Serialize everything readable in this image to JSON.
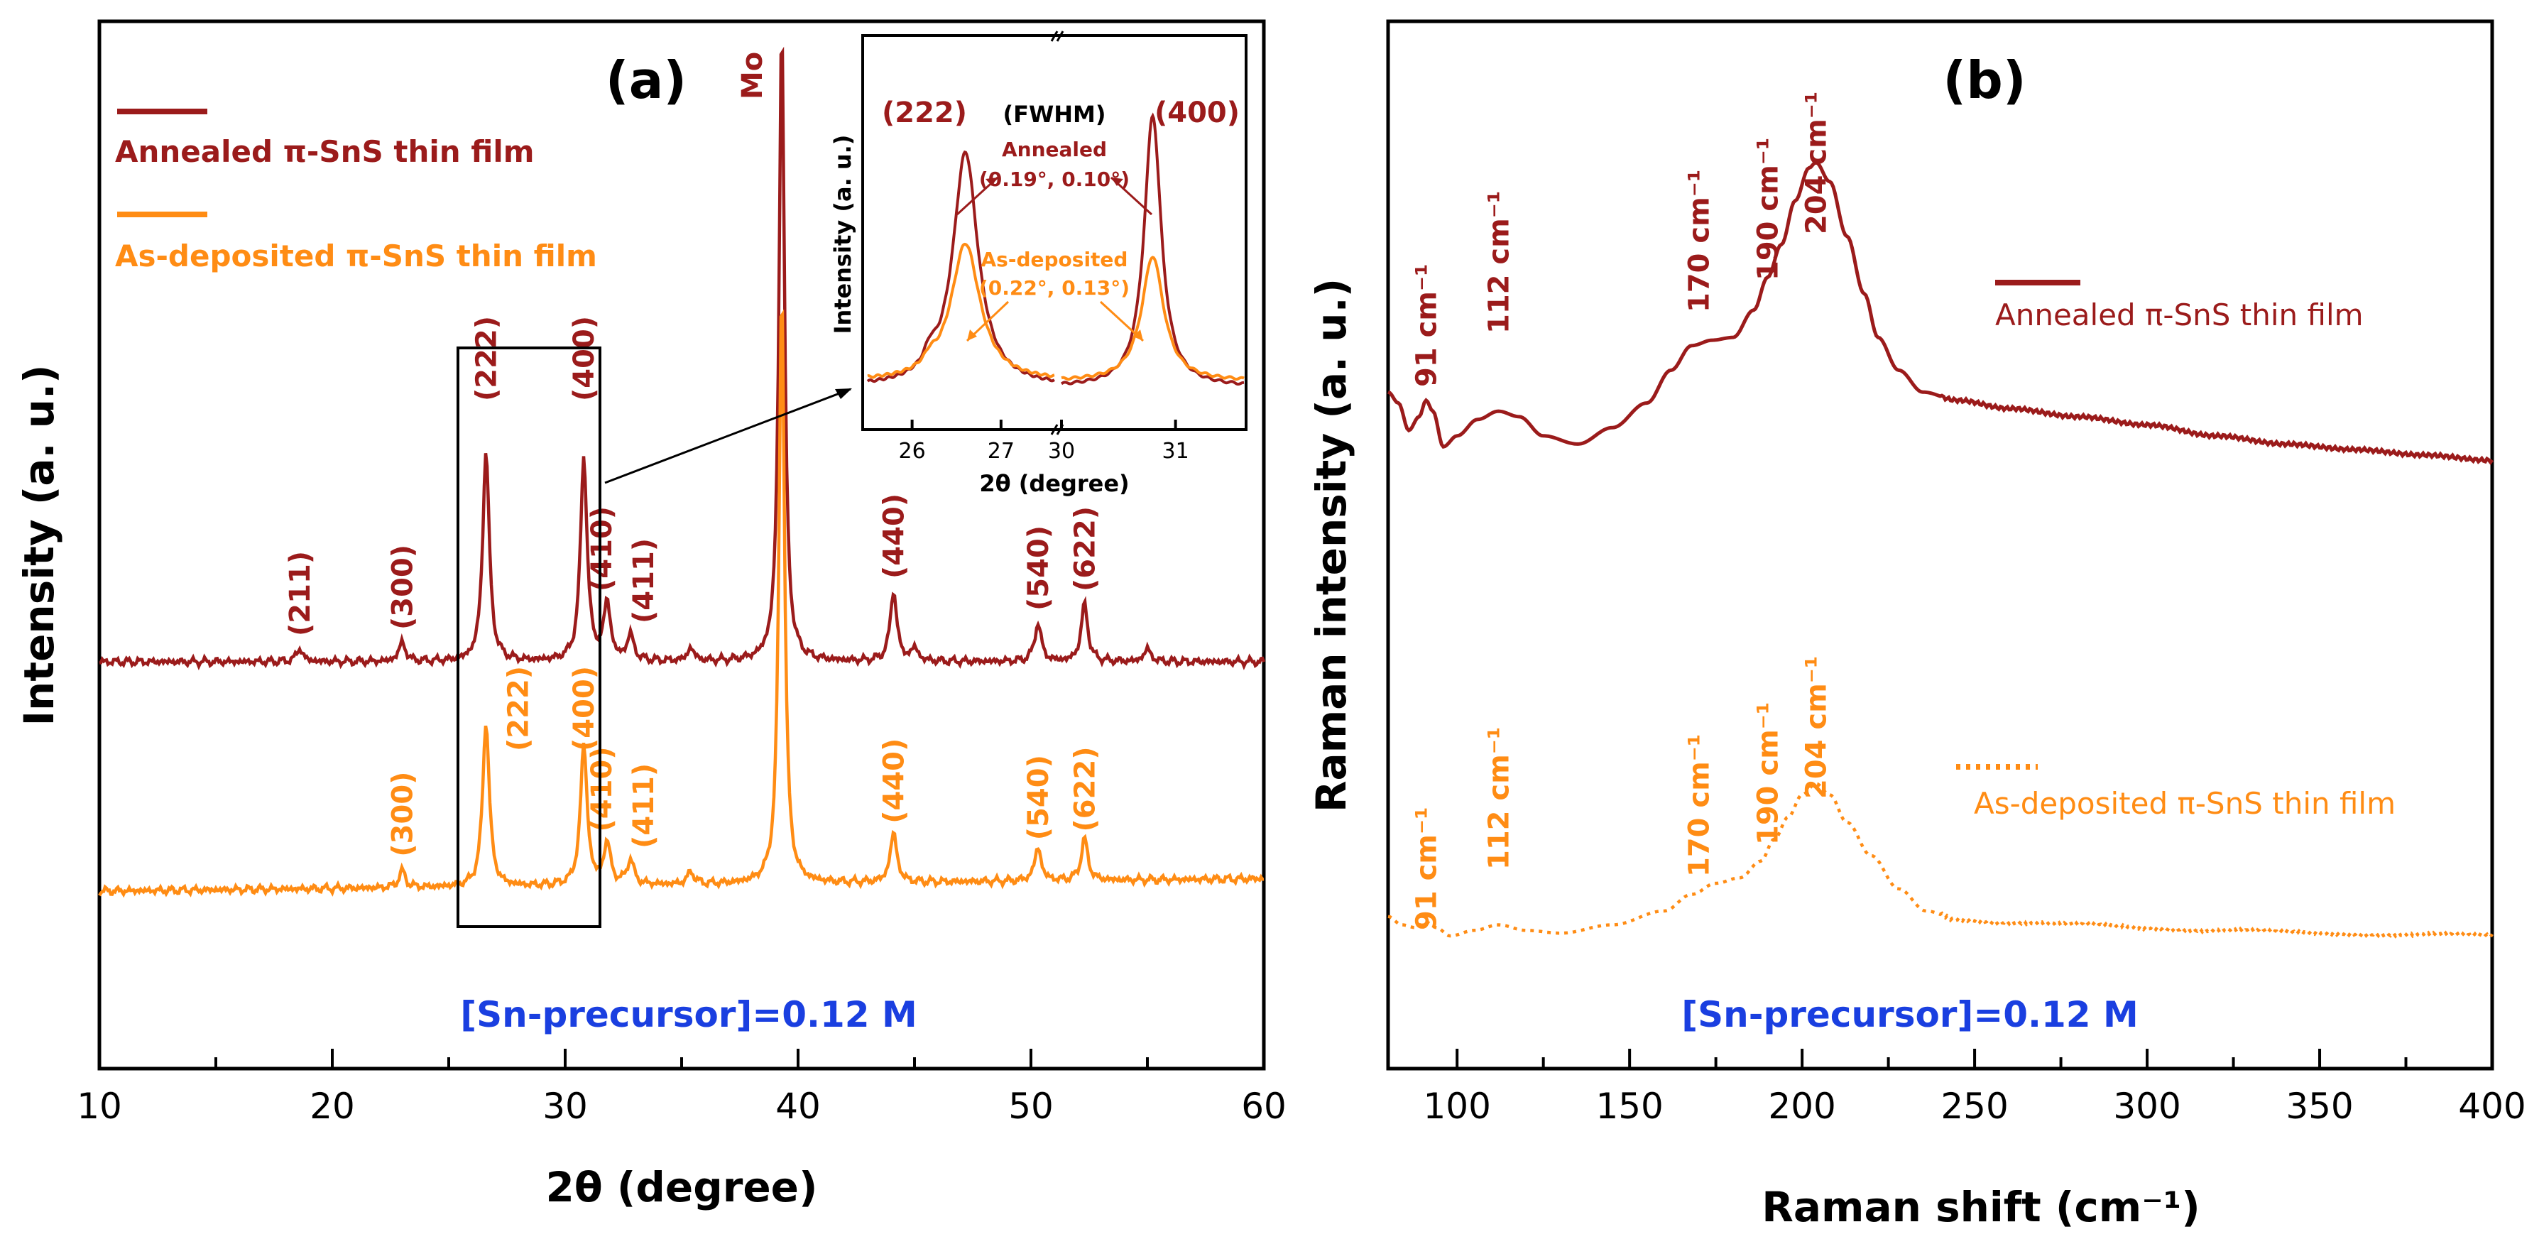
{
  "colors": {
    "annealed": "#9b1b1b",
    "as_deposited": "#ff8c14",
    "precursor": "#1a3fe0",
    "axis": "#000000"
  },
  "chart_data": [
    {
      "id": "a",
      "type": "line",
      "panel_label": "(a)",
      "xlabel": "2θ (degree)",
      "ylabel": "Intensity (a. u.)",
      "xlim": [
        10,
        60
      ],
      "xticks": [
        "10",
        "20",
        "30",
        "40",
        "50",
        "60"
      ],
      "annotation": "[Sn-precursor]=0.12 M",
      "mo_label": "Mo",
      "legend": [
        "Annealed π-SnS thin film",
        "As-deposited π-SnS thin film"
      ],
      "series": [
        {
          "name": "Annealed π-SnS thin film",
          "baseline": 0,
          "peaks": [
            [
              18.6,
              0.02
            ],
            [
              23.0,
              0.03
            ],
            [
              26.6,
              0.33
            ],
            [
              30.8,
              0.32
            ],
            [
              31.8,
              0.09
            ],
            [
              32.8,
              0.04
            ],
            [
              35.4,
              0.02
            ],
            [
              39.3,
              1.0
            ],
            [
              44.1,
              0.11
            ],
            [
              45.0,
              0.02
            ],
            [
              50.3,
              0.06
            ],
            [
              52.3,
              0.09
            ],
            [
              55.0,
              0.02
            ]
          ],
          "peak_labels": [
            {
              "text": "(211)",
              "x": 18.6
            },
            {
              "text": "(300)",
              "x": 23.0
            },
            {
              "text": "(222)",
              "x": 26.6
            },
            {
              "text": "(400)",
              "x": 30.8
            },
            {
              "text": "(410)",
              "x": 31.8
            },
            {
              "text": "(411)",
              "x": 32.8
            },
            {
              "text": "(440)",
              "x": 44.1
            },
            {
              "text": "(540)",
              "x": 50.3
            },
            {
              "text": "(622)",
              "x": 52.3
            }
          ]
        },
        {
          "name": "As-deposited π-SnS thin film",
          "baseline": -1,
          "peaks": [
            [
              23.0,
              0.02
            ],
            [
              26.6,
              0.2
            ],
            [
              30.8,
              0.17
            ],
            [
              31.8,
              0.05
            ],
            [
              32.8,
              0.03
            ],
            [
              35.4,
              0.015
            ],
            [
              39.3,
              0.72
            ],
            [
              44.1,
              0.06
            ],
            [
              50.3,
              0.04
            ],
            [
              52.3,
              0.05
            ]
          ],
          "peak_labels": [
            {
              "text": "(300)",
              "x": 23.0
            },
            {
              "text": "(222)",
              "x": 26.6
            },
            {
              "text": "(400)",
              "x": 30.8
            },
            {
              "text": "(410)",
              "x": 31.8
            },
            {
              "text": "(411)",
              "x": 32.8
            },
            {
              "text": "(440)",
              "x": 44.1
            },
            {
              "text": "(540)",
              "x": 50.3
            },
            {
              "text": "(622)",
              "x": 52.3
            }
          ]
        }
      ],
      "zoom_box_x": [
        25.3,
        31.5
      ]
    },
    {
      "id": "a-inset",
      "type": "line",
      "ylabel": "Intensity (a. u.)",
      "xlabel": "2θ (degree)",
      "title": "(FWHM)",
      "xticks_left": [
        "26",
        "27",
        "30"
      ],
      "xticks_right": [
        "31"
      ],
      "xlim_left": [
        25.5,
        27.6
      ],
      "xlim_right": [
        30.0,
        31.6
      ],
      "peak_left": "(222)",
      "peak_right": "(400)",
      "annealed_text": "Annealed",
      "annealed_fwhm": "(0.19°, 0.10°)",
      "as_deposited_text": "As-deposited",
      "as_deposited_fwhm": "(0.22°, 0.13°)",
      "series": [
        {
          "name": "Annealed",
          "peak_222": [
            26.6,
            0.75,
            0.19
          ],
          "peak_400": [
            30.8,
            0.87,
            0.1
          ]
        },
        {
          "name": "As-deposited",
          "peak_222": [
            26.6,
            0.44,
            0.22
          ],
          "peak_400": [
            30.8,
            0.4,
            0.13
          ]
        }
      ]
    },
    {
      "id": "b",
      "type": "line",
      "panel_label": "(b)",
      "xlabel": "Raman shift (cm⁻¹)",
      "ylabel": "Raman intensity (a. u.)",
      "xlim": [
        80,
        400
      ],
      "xticks": [
        "100",
        "150",
        "200",
        "250",
        "300",
        "350",
        "400"
      ],
      "annotation": "[Sn-precursor]=0.12 M",
      "legend": [
        "Annealed π-SnS thin film",
        "As-deposited π-SnS thin film"
      ],
      "series": [
        {
          "name": "Annealed π-SnS thin film",
          "style": "solid",
          "points": [
            [
              80,
              0.28
            ],
            [
              83,
              0.24
            ],
            [
              86,
              0.14
            ],
            [
              89,
              0.19
            ],
            [
              91,
              0.25
            ],
            [
              93,
              0.21
            ],
            [
              96,
              0.08
            ],
            [
              100,
              0.12
            ],
            [
              106,
              0.18
            ],
            [
              112,
              0.21
            ],
            [
              118,
              0.19
            ],
            [
              125,
              0.12
            ],
            [
              135,
              0.09
            ],
            [
              145,
              0.15
            ],
            [
              155,
              0.24
            ],
            [
              162,
              0.36
            ],
            [
              168,
              0.45
            ],
            [
              174,
              0.47
            ],
            [
              180,
              0.48
            ],
            [
              186,
              0.58
            ],
            [
              190,
              0.7
            ],
            [
              194,
              0.82
            ],
            [
              198,
              0.98
            ],
            [
              202,
              1.1
            ],
            [
              204,
              1.12
            ],
            [
              208,
              1.05
            ],
            [
              213,
              0.85
            ],
            [
              218,
              0.64
            ],
            [
              222,
              0.48
            ],
            [
              228,
              0.36
            ],
            [
              235,
              0.28
            ],
            [
              245,
              0.25
            ],
            [
              260,
              0.22
            ],
            [
              280,
              0.19
            ],
            [
              300,
              0.16
            ],
            [
              320,
              0.12
            ],
            [
              340,
              0.09
            ],
            [
              360,
              0.07
            ],
            [
              380,
              0.05
            ],
            [
              400,
              0.03
            ]
          ],
          "peak_labels": [
            {
              "text": "91 cm⁻¹",
              "x": 91
            },
            {
              "text": "112 cm⁻¹",
              "x": 112
            },
            {
              "text": "170 cm⁻¹",
              "x": 170
            },
            {
              "text": "190 cm⁻¹",
              "x": 190
            },
            {
              "text": "204 cm⁻¹",
              "x": 204
            }
          ]
        },
        {
          "name": "As-deposited π-SnS thin film",
          "style": "dotted",
          "points": [
            [
              80,
              0.08
            ],
            [
              84,
              0.05
            ],
            [
              88,
              0.04
            ],
            [
              91,
              0.06
            ],
            [
              94,
              0.04
            ],
            [
              98,
              0.01
            ],
            [
              105,
              0.03
            ],
            [
              112,
              0.05
            ],
            [
              120,
              0.03
            ],
            [
              130,
              0.02
            ],
            [
              145,
              0.05
            ],
            [
              160,
              0.1
            ],
            [
              168,
              0.16
            ],
            [
              175,
              0.2
            ],
            [
              182,
              0.22
            ],
            [
              188,
              0.28
            ],
            [
              192,
              0.36
            ],
            [
              196,
              0.44
            ],
            [
              200,
              0.52
            ],
            [
              204,
              0.56
            ],
            [
              208,
              0.52
            ],
            [
              213,
              0.42
            ],
            [
              220,
              0.3
            ],
            [
              228,
              0.18
            ],
            [
              236,
              0.1
            ],
            [
              245,
              0.07
            ],
            [
              260,
              0.06
            ],
            [
              280,
              0.05
            ],
            [
              300,
              0.04
            ],
            [
              320,
              0.03
            ],
            [
              350,
              0.02
            ],
            [
              380,
              0.015
            ],
            [
              400,
              0.01
            ]
          ],
          "peak_labels": [
            {
              "text": "91 cm⁻¹",
              "x": 91
            },
            {
              "text": "112 cm⁻¹",
              "x": 112
            },
            {
              "text": "170 cm⁻¹",
              "x": 170
            },
            {
              "text": "190 cm⁻¹",
              "x": 190
            },
            {
              "text": "204 cm⁻¹",
              "x": 204
            }
          ]
        }
      ]
    }
  ]
}
